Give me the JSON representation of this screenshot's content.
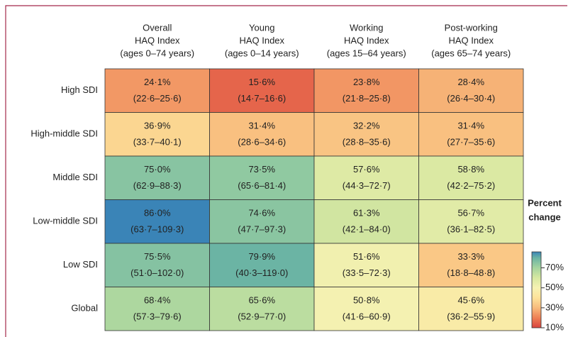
{
  "chart_data": {
    "type": "heatmap",
    "x_categories": [
      [
        "Overall",
        "HAQ Index",
        "(ages 0–74 years)"
      ],
      [
        "Young",
        "HAQ Index",
        "(ages 0–14 years)"
      ],
      [
        "Working",
        "HAQ Index",
        "(ages 15–64 years)"
      ],
      [
        "Post-working",
        "HAQ Index",
        "(ages 65–74 years)"
      ]
    ],
    "y_categories": [
      "High SDI",
      "High-middle SDI",
      "Middle SDI",
      "Low-middle SDI",
      "Low SDI",
      "Global"
    ],
    "values": [
      [
        24.1,
        15.6,
        23.8,
        28.4
      ],
      [
        36.9,
        31.4,
        32.2,
        31.4
      ],
      [
        75.0,
        73.5,
        57.6,
        58.8
      ],
      [
        86.0,
        74.6,
        61.3,
        56.7
      ],
      [
        75.5,
        79.9,
        51.6,
        33.3
      ],
      [
        68.4,
        65.6,
        50.8,
        45.6
      ]
    ],
    "value_labels": [
      [
        "24·1%",
        "15·6%",
        "23·8%",
        "28·4%"
      ],
      [
        "36·9%",
        "31·4%",
        "32·2%",
        "31·4%"
      ],
      [
        "75·0%",
        "73·5%",
        "57·6%",
        "58·8%"
      ],
      [
        "86·0%",
        "74·6%",
        "61·3%",
        "56·7%"
      ],
      [
        "75·5%",
        "79·9%",
        "51·6%",
        "33·3%"
      ],
      [
        "68·4%",
        "65·6%",
        "50·8%",
        "45·6%"
      ]
    ],
    "ci_labels": [
      [
        "(22·6–25·6)",
        "(14·7–16·6)",
        "(21·8–25·8)",
        "(26·4–30·4)"
      ],
      [
        "(33·7–40·1)",
        "(28·6–34·6)",
        "(28·8–35·6)",
        "(27·7–35·6)"
      ],
      [
        "(62·9–88·3)",
        "(65·6–81·4)",
        "(44·3–72·7)",
        "(42·2–75·2)"
      ],
      [
        "(63·7–109·3)",
        "(47·7–97·3)",
        "(42·1–84·0)",
        "(36·1–82·5)"
      ],
      [
        "(51·0–102·0)",
        "(40·3–119·0)",
        "(33·5–72·3)",
        "(18·8–48·8)"
      ],
      [
        "(57·3–79·6)",
        "(52·9–77·0)",
        "(41·6–60·9)",
        "(36·2–55·9)"
      ]
    ],
    "colorbar": {
      "title": [
        "Percent",
        "change"
      ],
      "lim": [
        10,
        86
      ],
      "ticks": [
        {
          "value": 10,
          "label": "10%"
        },
        {
          "value": 30,
          "label": "30%"
        },
        {
          "value": 50,
          "label": "50%"
        },
        {
          "value": 70,
          "label": "70%"
        }
      ],
      "stops": [
        {
          "value": 10,
          "color": "#d9433f"
        },
        {
          "value": 20,
          "color": "#ee8055"
        },
        {
          "value": 30,
          "color": "#f8bb7c"
        },
        {
          "value": 40,
          "color": "#fde29a"
        },
        {
          "value": 50,
          "color": "#f6f2b2"
        },
        {
          "value": 60,
          "color": "#d7e8a1"
        },
        {
          "value": 70,
          "color": "#a5d49f"
        },
        {
          "value": 80,
          "color": "#6ab4a4"
        },
        {
          "value": 86,
          "color": "#3a84b7"
        }
      ]
    }
  }
}
